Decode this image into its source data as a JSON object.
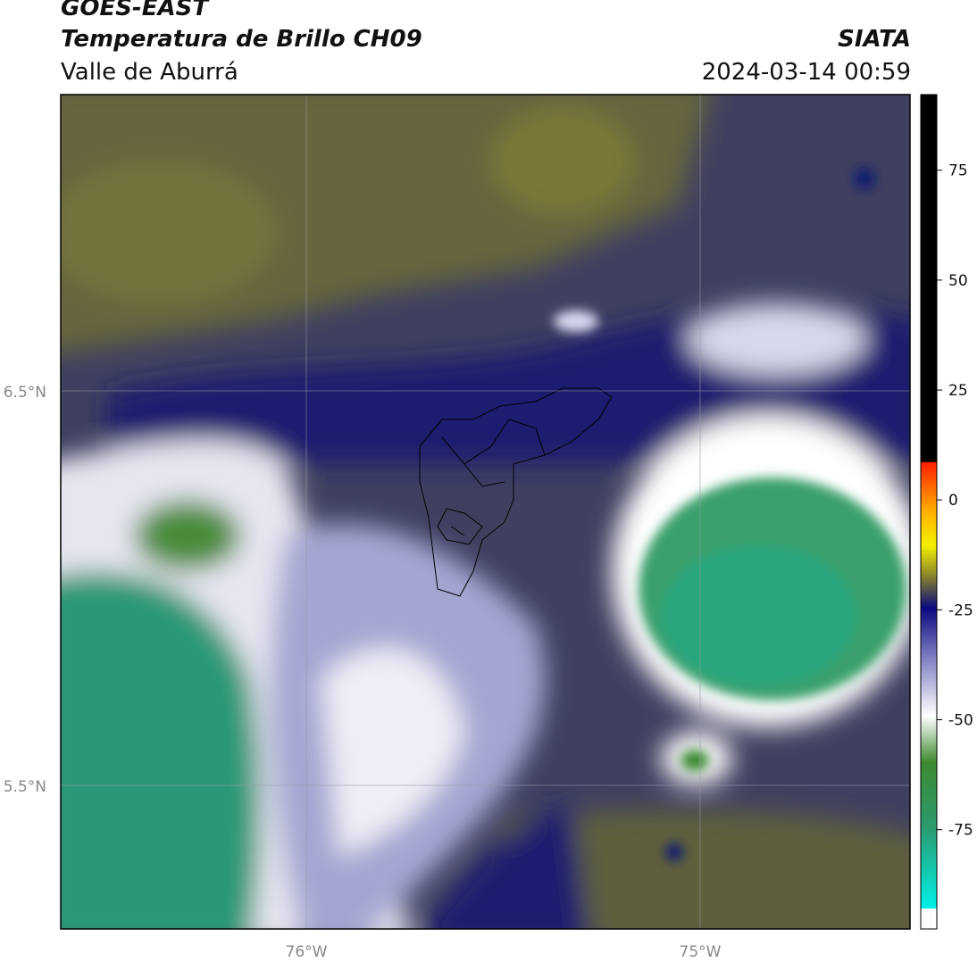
{
  "header": {
    "source": "GOES-EAST",
    "product": "Temperatura de Brillo CH09",
    "region": "Valle de Aburrá",
    "agency": "SIATA",
    "datetime": "2024-03-14 00:59"
  },
  "map": {
    "lat_labels": [
      "6.5°N",
      "5.5°N"
    ],
    "lon_labels": [
      "76°W",
      "75°W"
    ]
  },
  "colorbar": {
    "lim": [
      -97.6,
      92.2
    ],
    "ticks": [
      75,
      50,
      25,
      0,
      -25,
      -50,
      -75
    ]
  }
}
